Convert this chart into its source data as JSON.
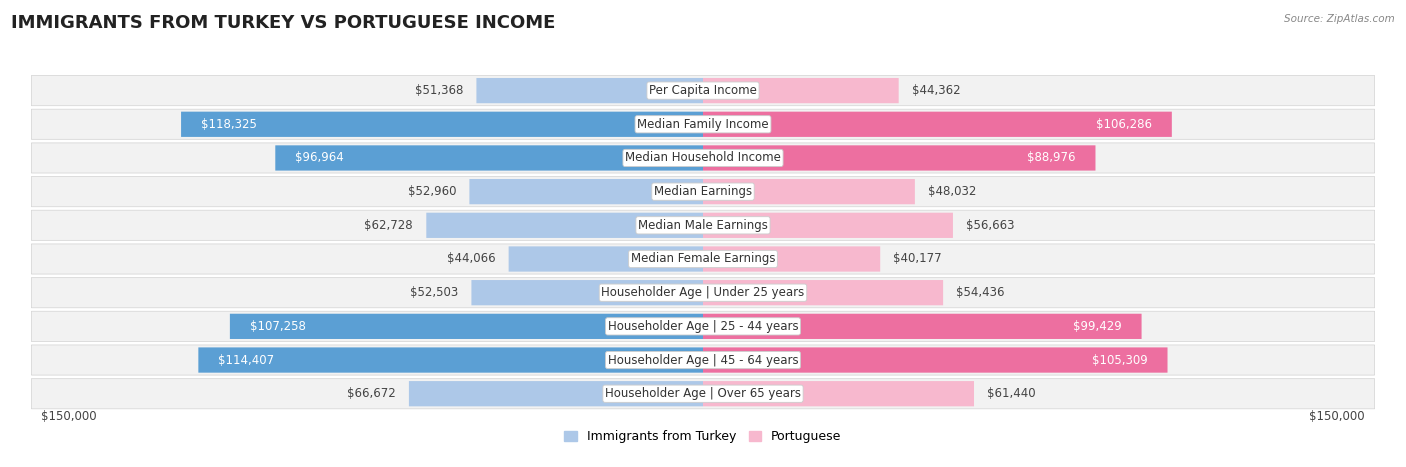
{
  "title": "IMMIGRANTS FROM TURKEY VS PORTUGUESE INCOME",
  "source": "Source: ZipAtlas.com",
  "categories": [
    "Per Capita Income",
    "Median Family Income",
    "Median Household Income",
    "Median Earnings",
    "Median Male Earnings",
    "Median Female Earnings",
    "Householder Age | Under 25 years",
    "Householder Age | 25 - 44 years",
    "Householder Age | 45 - 64 years",
    "Householder Age | Over 65 years"
  ],
  "turkey_values": [
    51368,
    118325,
    96964,
    52960,
    62728,
    44066,
    52503,
    107258,
    114407,
    66672
  ],
  "portuguese_values": [
    44362,
    106286,
    88976,
    48032,
    56663,
    40177,
    54436,
    99429,
    105309,
    61440
  ],
  "turkey_color_light": "#adc8e8",
  "turkey_color_dark": "#5b9fd4",
  "portuguese_color_light": "#f7b8ce",
  "portuguese_color_dark": "#ed6fa0",
  "turkey_label": "Immigrants from Turkey",
  "portuguese_label": "Portuguese",
  "max_value": 150000,
  "threshold_dark": 70000,
  "xlabel_left": "$150,000",
  "xlabel_right": "$150,000",
  "bg_color": "#ffffff",
  "row_bg_light": "#f2f2f2",
  "row_border": "#d8d8d8",
  "title_fontsize": 13,
  "label_fontsize": 8.5,
  "value_fontsize": 8.5
}
